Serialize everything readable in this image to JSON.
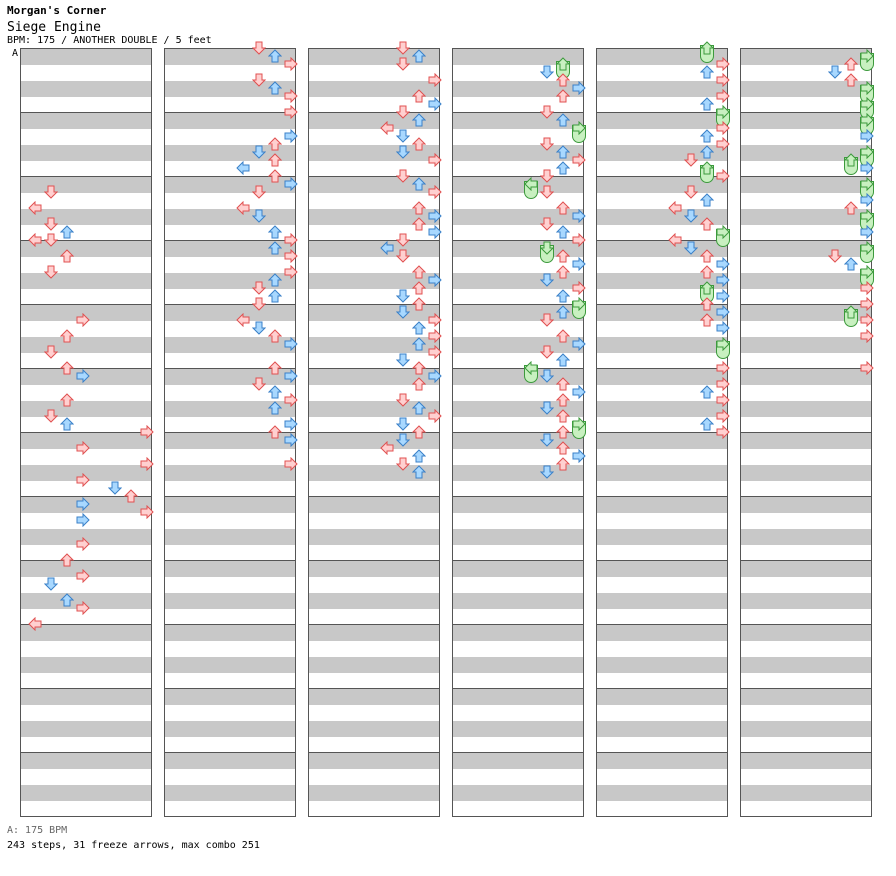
{
  "header": {
    "site": "Morgan's Corner",
    "song_title": "Siege Engine",
    "info": "BPM: 175 / ANOTHER DOUBLE / 5 feet",
    "tempo_marker": "A"
  },
  "footer": {
    "bpm_line": "A: 175 BPM",
    "stats_line": "243 steps, 31 freeze arrows, max combo 251"
  },
  "colors": {
    "quarter_fill": "#ffd0d0",
    "quarter_stroke": "#e05050",
    "eighth_fill": "#a8d8ff",
    "eighth_stroke": "#3a80c8",
    "freeze_fill": "#c8f0c0",
    "freeze_stroke": "#3c9a3c",
    "stripe": "#c8c8c8"
  },
  "chart": {
    "lanes": [
      "P1-left",
      "P1-down",
      "P1-up",
      "P1-right",
      "P2-left",
      "P2-down",
      "P2-up",
      "P2-right"
    ],
    "measures_per_column": 12,
    "beats_per_measure": 4,
    "columns": [
      {
        "notes": [
          [
            4.5,
            1
          ],
          [
            5,
            0
          ],
          [
            5.5,
            1
          ],
          [
            6,
            0
          ],
          [
            5.75,
            2
          ],
          [
            6,
            1
          ],
          [
            6.5,
            2
          ],
          [
            7,
            1
          ],
          [
            8.5,
            3
          ],
          [
            9,
            2
          ],
          [
            9.5,
            1
          ],
          [
            10,
            2
          ],
          [
            10.25,
            3
          ],
          [
            11,
            2
          ],
          [
            11.5,
            1
          ],
          [
            11.75,
            2
          ],
          [
            12,
            7
          ],
          [
            12.5,
            3
          ],
          [
            13,
            7
          ],
          [
            13.5,
            3
          ],
          [
            13.75,
            5
          ],
          [
            14,
            6
          ],
          [
            14.25,
            3
          ],
          [
            14.5,
            7
          ],
          [
            14.75,
            3
          ],
          [
            15.5,
            3
          ],
          [
            16,
            2
          ],
          [
            16.5,
            3
          ],
          [
            16.75,
            1
          ],
          [
            17.25,
            2
          ],
          [
            17.5,
            3
          ],
          [
            18,
            0
          ]
        ]
      },
      {
        "notes": [
          [
            0,
            5
          ],
          [
            0.25,
            6
          ],
          [
            0.5,
            7
          ],
          [
            1,
            5
          ],
          [
            1.25,
            6
          ],
          [
            1.5,
            7
          ],
          [
            1.75,
            8
          ],
          [
            2,
            7
          ],
          [
            2.25,
            8
          ],
          [
            2.75,
            7
          ],
          [
            3,
            6
          ],
          [
            3.25,
            5
          ],
          [
            3.5,
            6
          ],
          [
            3.75,
            4
          ],
          [
            4,
            6
          ],
          [
            4.25,
            7
          ],
          [
            4.5,
            5
          ],
          [
            5,
            4
          ],
          [
            5.25,
            5
          ],
          [
            5.75,
            6
          ],
          [
            6,
            7
          ],
          [
            6.25,
            6
          ],
          [
            6.5,
            7
          ],
          [
            6.75,
            8
          ],
          [
            7,
            7
          ],
          [
            7.25,
            6
          ],
          [
            7.5,
            5
          ],
          [
            7.75,
            6
          ],
          [
            8,
            5
          ],
          [
            8.5,
            4
          ],
          [
            8.75,
            5
          ],
          [
            9,
            6
          ],
          [
            9.25,
            7
          ],
          [
            9.5,
            8
          ],
          [
            10,
            6
          ],
          [
            10.25,
            7
          ],
          [
            10.5,
            5
          ],
          [
            10.75,
            6
          ],
          [
            11,
            7
          ],
          [
            11.25,
            6
          ],
          [
            11.5,
            8
          ],
          [
            11.75,
            7
          ],
          [
            12,
            6
          ],
          [
            12.25,
            7
          ],
          [
            12.5,
            8
          ],
          [
            13,
            7
          ]
        ]
      },
      {
        "notes": [
          [
            0,
            5
          ],
          [
            0.25,
            6
          ],
          [
            0.5,
            5
          ],
          [
            1,
            7
          ],
          [
            1.5,
            6
          ],
          [
            1.75,
            7
          ],
          [
            2,
            5
          ],
          [
            2.25,
            6
          ],
          [
            2.5,
            4
          ],
          [
            2.75,
            5
          ],
          [
            3,
            6
          ],
          [
            3.25,
            5
          ],
          [
            3.5,
            7
          ],
          [
            4,
            5
          ],
          [
            4.25,
            6
          ],
          [
            4.5,
            7
          ],
          [
            5,
            6
          ],
          [
            5.25,
            7
          ],
          [
            5.5,
            6
          ],
          [
            5.75,
            7
          ],
          [
            6,
            5
          ],
          [
            6.25,
            4
          ],
          [
            6.5,
            5
          ],
          [
            7,
            6
          ],
          [
            7.25,
            7
          ],
          [
            7.5,
            6
          ],
          [
            7.75,
            5
          ],
          [
            8,
            6
          ],
          [
            8.25,
            5
          ],
          [
            8.5,
            7
          ],
          [
            8.75,
            6
          ],
          [
            9,
            7
          ],
          [
            9.25,
            6
          ],
          [
            9.5,
            7
          ],
          [
            9.75,
            5
          ],
          [
            10,
            6
          ],
          [
            10.25,
            7
          ],
          [
            10.5,
            6
          ],
          [
            11,
            5
          ],
          [
            11.25,
            6
          ],
          [
            11.5,
            7
          ],
          [
            11.75,
            5
          ],
          [
            12,
            6
          ],
          [
            12.25,
            5
          ],
          [
            12.5,
            4
          ],
          [
            12.75,
            6
          ],
          [
            13,
            5
          ],
          [
            13.25,
            6
          ]
        ]
      },
      {
        "notes": [
          [
            0.5,
            6
          ],
          [
            0.75,
            5
          ],
          [
            1,
            6
          ],
          [
            1.25,
            7
          ],
          [
            1.5,
            6
          ],
          [
            2,
            5
          ],
          [
            2.25,
            6
          ],
          [
            2.5,
            7
          ],
          [
            2.75,
            8
          ],
          [
            3,
            5
          ],
          [
            3.25,
            6
          ],
          [
            3.5,
            7
          ],
          [
            3.75,
            6
          ],
          [
            4,
            5
          ],
          [
            4.25,
            4
          ],
          [
            4.5,
            5
          ],
          [
            5,
            6
          ],
          [
            5.25,
            7
          ],
          [
            5.5,
            5
          ],
          [
            5.75,
            6
          ],
          [
            6,
            7
          ],
          [
            6.25,
            5
          ],
          [
            6.5,
            6
          ],
          [
            6.75,
            7
          ],
          [
            7,
            6
          ],
          [
            7.25,
            5
          ],
          [
            7.5,
            7
          ],
          [
            7.75,
            6
          ],
          [
            8,
            7
          ],
          [
            8.25,
            6
          ],
          [
            8.5,
            5
          ],
          [
            9,
            6
          ],
          [
            9.25,
            7
          ],
          [
            9.5,
            5
          ],
          [
            9.75,
            6
          ],
          [
            10,
            4
          ],
          [
            10.25,
            5
          ],
          [
            10.5,
            6
          ],
          [
            10.75,
            7
          ],
          [
            11,
            6
          ],
          [
            11.25,
            5
          ],
          [
            11.5,
            6
          ],
          [
            11.75,
            7
          ],
          [
            12,
            6
          ],
          [
            12.25,
            5
          ],
          [
            12.5,
            6
          ],
          [
            12.75,
            7
          ],
          [
            13,
            6
          ],
          [
            13.25,
            5
          ]
        ]
      },
      {
        "notes": [
          [
            0,
            6
          ],
          [
            0.5,
            7
          ],
          [
            0.75,
            6
          ],
          [
            1,
            7
          ],
          [
            1.25,
            8
          ],
          [
            1.5,
            7
          ],
          [
            1.75,
            6
          ],
          [
            2,
            7
          ],
          [
            2.25,
            8
          ],
          [
            2.5,
            7
          ],
          [
            2.75,
            6
          ],
          [
            3,
            7
          ],
          [
            3.25,
            6
          ],
          [
            3.5,
            5
          ],
          [
            3.75,
            6
          ],
          [
            4,
            7
          ],
          [
            4.5,
            5
          ],
          [
            4.75,
            6
          ],
          [
            5,
            4
          ],
          [
            5.25,
            5
          ],
          [
            5.5,
            6
          ],
          [
            5.75,
            7
          ],
          [
            6,
            4
          ],
          [
            6.25,
            5
          ],
          [
            6.5,
            6
          ],
          [
            6.75,
            7
          ],
          [
            7,
            6
          ],
          [
            7.25,
            7
          ],
          [
            7.5,
            6
          ],
          [
            7.75,
            7
          ],
          [
            8,
            6
          ],
          [
            8.25,
            7
          ],
          [
            8.5,
            6
          ],
          [
            8.75,
            7
          ],
          [
            9,
            8
          ],
          [
            9.25,
            7
          ],
          [
            9.5,
            8
          ],
          [
            10,
            7
          ],
          [
            10.25,
            8
          ],
          [
            10.5,
            7
          ],
          [
            10.75,
            6
          ],
          [
            11,
            7
          ],
          [
            11.25,
            8
          ],
          [
            11.5,
            7
          ],
          [
            11.75,
            6
          ],
          [
            12,
            7
          ]
        ]
      },
      {
        "notes": [
          [
            0,
            8
          ],
          [
            0.25,
            7
          ],
          [
            0.5,
            6
          ],
          [
            0.75,
            5
          ],
          [
            1,
            6
          ],
          [
            1.25,
            7
          ],
          [
            1.5,
            8
          ],
          [
            1.75,
            7
          ],
          [
            2,
            8
          ],
          [
            2.25,
            7
          ],
          [
            2.5,
            8
          ],
          [
            2.75,
            7
          ],
          [
            3,
            8
          ],
          [
            3.25,
            7
          ],
          [
            3.5,
            6
          ],
          [
            3.75,
            7
          ],
          [
            4,
            8
          ],
          [
            4.25,
            7
          ],
          [
            4.5,
            8
          ],
          [
            4.75,
            7
          ],
          [
            5,
            6
          ],
          [
            5.25,
            7
          ],
          [
            5.5,
            8
          ],
          [
            5.75,
            7
          ],
          [
            6,
            8
          ],
          [
            6.25,
            7
          ],
          [
            6.5,
            5
          ],
          [
            6.75,
            6
          ],
          [
            7,
            7
          ],
          [
            7.25,
            8
          ],
          [
            7.5,
            7
          ],
          [
            7.75,
            8
          ],
          [
            8,
            7
          ],
          [
            8.25,
            6
          ],
          [
            8.5,
            7
          ],
          [
            8.75,
            8
          ],
          [
            9,
            7
          ],
          [
            9.5,
            8
          ],
          [
            10,
            7
          ],
          [
            10.5,
            8
          ]
        ]
      }
    ],
    "note_detail": [
      {
        "col": 0,
        "beat": 4.5,
        "lane": 3,
        "type": "q"
      },
      {
        "col": 0,
        "beat": 4.75,
        "lane": 0,
        "type": "q"
      },
      {
        "col": 0,
        "beat": 5,
        "lane": 3,
        "type": "q"
      },
      {
        "col": 0,
        "beat": 5.5,
        "lane": 0,
        "type": "q"
      },
      {
        "col": 0,
        "beat": 5.5,
        "lane": 2,
        "type": "e"
      },
      {
        "col": 0,
        "beat": 5.75,
        "lane": 1,
        "type": "e"
      },
      {
        "col": 0,
        "beat": 6,
        "lane": 3,
        "type": "q"
      },
      {
        "col": 0,
        "beat": 6,
        "lane": 4,
        "type": "e"
      },
      {
        "col": 0,
        "beat": 6.5,
        "lane": 4,
        "type": "q"
      },
      {
        "col": 0,
        "beat": 7,
        "lane": 3,
        "type": "q"
      },
      {
        "col": 0,
        "beat": 7,
        "lane": 4,
        "type": "q"
      },
      {
        "col": 0,
        "beat": 7.5,
        "lane": 4,
        "type": "q"
      },
      {
        "col": 0,
        "beat": 7.75,
        "lane": 5,
        "type": "e"
      },
      {
        "col": 0,
        "beat": 8,
        "lane": 4,
        "type": "e"
      },
      {
        "col": 0,
        "beat": 8.25,
        "lane": 6,
        "type": "e"
      },
      {
        "col": 0,
        "beat": 8.5,
        "lane": 5,
        "type": "q"
      },
      {
        "col": 0,
        "beat": 9,
        "lane": 7,
        "type": "q"
      },
      {
        "col": 0,
        "beat": 9.25,
        "lane": 4,
        "type": "q"
      },
      {
        "col": 0,
        "beat": 9.75,
        "lane": 7,
        "type": "q"
      },
      {
        "col": 0,
        "beat": 10,
        "lane": 4,
        "type": "q"
      },
      {
        "col": 0,
        "beat": 10.25,
        "lane": 5,
        "type": "e"
      },
      {
        "col": 0,
        "beat": 10.5,
        "lane": 6,
        "type": "e"
      },
      {
        "col": 0,
        "beat": 10.75,
        "lane": 7,
        "type": "e"
      },
      {
        "col": 0,
        "beat": 11,
        "lane": 5,
        "type": "q"
      },
      {
        "col": 0,
        "beat": 11.5,
        "lane": 4,
        "type": "q"
      },
      {
        "col": 0,
        "beat": 11.75,
        "lane": 3,
        "type": "q"
      },
      {
        "col": 0,
        "beat": 12,
        "lane": 4,
        "type": "q"
      },
      {
        "col": 0,
        "beat": 12.25,
        "lane": 3,
        "type": "q"
      },
      {
        "col": 0,
        "beat": 12.5,
        "lane": 4,
        "type": "e"
      },
      {
        "col": 0,
        "beat": 12.75,
        "lane": 2,
        "type": "e"
      },
      {
        "col": 0,
        "beat": 13,
        "lane": 3,
        "type": "e"
      },
      {
        "col": 0,
        "beat": 13.5,
        "lane": 0,
        "type": "q"
      }
    ]
  }
}
